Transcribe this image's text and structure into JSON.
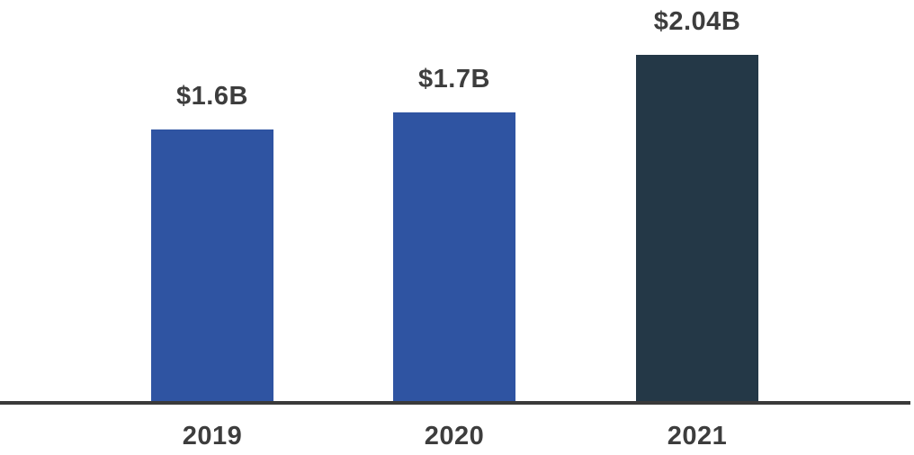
{
  "chart_data": {
    "type": "bar",
    "title": "",
    "xlabel": "",
    "ylabel": "",
    "categories": [
      "2019",
      "2020",
      "2021"
    ],
    "values": [
      1.6,
      1.7,
      2.04
    ],
    "value_labels": [
      "$1.6B",
      "$1.7B",
      "$2.04B"
    ],
    "unit": "USD billions",
    "ylim": [
      0,
      2.36
    ],
    "grid": false,
    "legend": "none",
    "bar_colors": [
      "#2f54a2",
      "#2f54a2",
      "#243847"
    ],
    "label_color": "#3d3d3d",
    "axis_color": "#3a3a3a",
    "background_color": "#ffffff"
  }
}
